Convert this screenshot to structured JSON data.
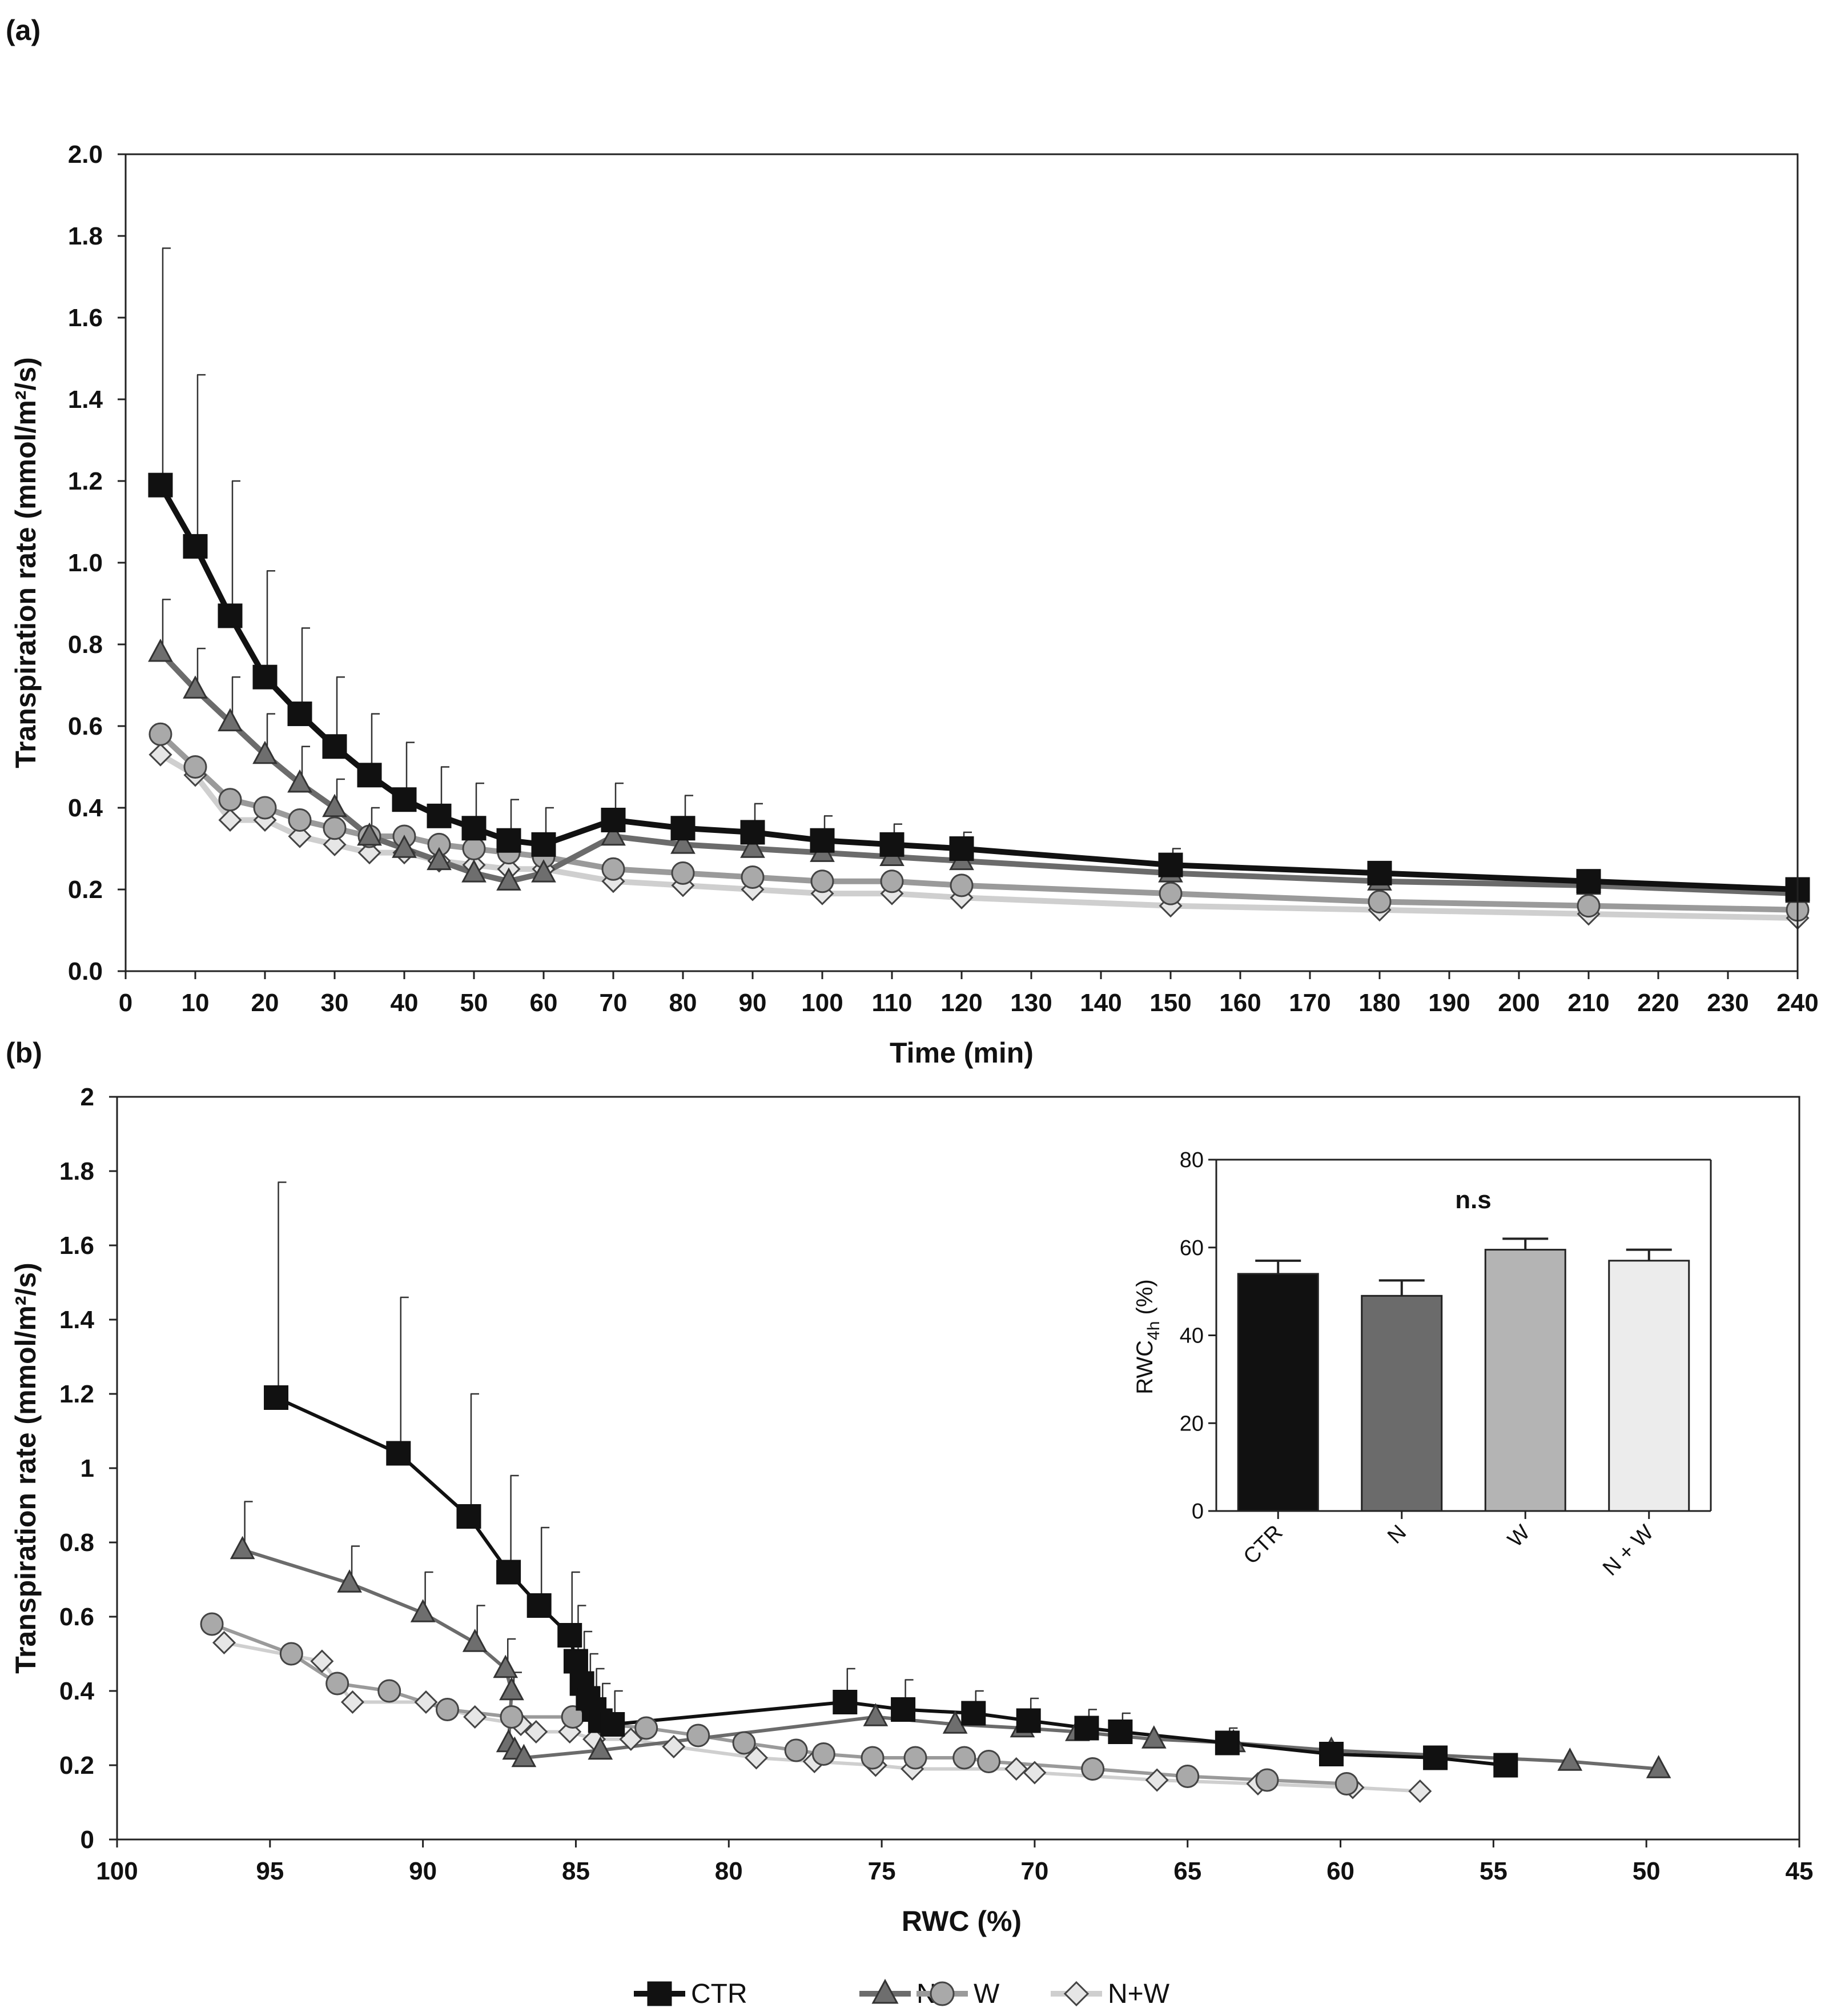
{
  "panels": {
    "a": "(a)",
    "b": "(b)"
  },
  "legend": [
    "CTR",
    "N",
    "W",
    "N+W"
  ],
  "colors": {
    "CTR": "#111111",
    "N": "#6b6b6b",
    "W": "#a9a9a9",
    "NW": "#dcdcdc"
  },
  "chart_data": [
    {
      "id": "a",
      "type": "line",
      "xlabel": "Time (min)",
      "ylabel": "Transpiration rate (mmol/m²/s)",
      "xlim": [
        0,
        240
      ],
      "ylim": [
        0,
        2
      ],
      "xticks": [
        0,
        10,
        20,
        30,
        40,
        50,
        60,
        70,
        80,
        90,
        100,
        110,
        120,
        130,
        140,
        150,
        160,
        170,
        180,
        190,
        200,
        210,
        220,
        230,
        240
      ],
      "yticks": [
        0,
        0.2,
        0.4,
        0.6,
        0.8,
        1.0,
        1.2,
        1.4,
        1.6,
        1.8,
        2.0
      ],
      "ytick_labels": [
        "0.0",
        "0.2",
        "0.4",
        "0.6",
        "0.8",
        "1.0",
        "1.2",
        "1.4",
        "1.6",
        "1.8",
        "2.0"
      ],
      "series": [
        {
          "name": "CTR",
          "marker": "square",
          "x": [
            5,
            10,
            15,
            20,
            25,
            30,
            35,
            40,
            45,
            50,
            55,
            60,
            70,
            80,
            90,
            100,
            110,
            120,
            150,
            180,
            210,
            240
          ],
          "y": [
            1.19,
            1.04,
            0.87,
            0.72,
            0.63,
            0.55,
            0.48,
            0.42,
            0.38,
            0.35,
            0.32,
            0.31,
            0.37,
            0.35,
            0.34,
            0.32,
            0.31,
            0.3,
            0.26,
            0.24,
            0.22,
            0.2
          ],
          "err": [
            0.58,
            0.42,
            0.33,
            0.26,
            0.21,
            0.17,
            0.15,
            0.14,
            0.12,
            0.11,
            0.1,
            0.09,
            0.09,
            0.08,
            0.07,
            0.06,
            0.05,
            0.04,
            0.04,
            0.02,
            0.02,
            0.02
          ]
        },
        {
          "name": "N",
          "marker": "triangle",
          "x": [
            5,
            10,
            15,
            20,
            25,
            30,
            35,
            40,
            45,
            50,
            55,
            60,
            70,
            80,
            90,
            100,
            110,
            120,
            150,
            180,
            210,
            240
          ],
          "y": [
            0.78,
            0.69,
            0.61,
            0.53,
            0.46,
            0.4,
            0.33,
            0.3,
            0.27,
            0.24,
            0.22,
            0.24,
            0.33,
            0.31,
            0.3,
            0.29,
            0.28,
            0.27,
            0.24,
            0.22,
            0.21,
            0.19
          ],
          "err": [
            0.13,
            0.1,
            0.11,
            0.1,
            0.09,
            0.07,
            0.07,
            0,
            0,
            0,
            0,
            0,
            0,
            0,
            0,
            0,
            0,
            0,
            0,
            0,
            0,
            0
          ]
        },
        {
          "name": "W",
          "marker": "circle",
          "x": [
            5,
            10,
            15,
            20,
            25,
            30,
            35,
            40,
            45,
            50,
            55,
            60,
            70,
            80,
            90,
            100,
            110,
            120,
            150,
            180,
            210,
            240
          ],
          "y": [
            0.58,
            0.5,
            0.42,
            0.4,
            0.37,
            0.35,
            0.33,
            0.33,
            0.31,
            0.3,
            0.29,
            0.28,
            0.25,
            0.24,
            0.23,
            0.22,
            0.22,
            0.21,
            0.19,
            0.17,
            0.16,
            0.15
          ],
          "err": []
        },
        {
          "name": "N+W",
          "marker": "diamond",
          "x": [
            5,
            10,
            15,
            20,
            25,
            30,
            35,
            40,
            45,
            50,
            55,
            60,
            70,
            80,
            90,
            100,
            110,
            120,
            150,
            180,
            210,
            240
          ],
          "y": [
            0.53,
            0.48,
            0.37,
            0.37,
            0.33,
            0.31,
            0.29,
            0.29,
            0.27,
            0.26,
            0.25,
            0.25,
            0.22,
            0.21,
            0.2,
            0.19,
            0.19,
            0.18,
            0.16,
            0.15,
            0.14,
            0.13
          ],
          "err": []
        }
      ]
    },
    {
      "id": "b",
      "type": "line",
      "xlabel": "RWC (%)",
      "ylabel": "Transpiration rate (mmol/m²/s)",
      "xlim": [
        100,
        45
      ],
      "ylim": [
        0,
        2
      ],
      "xticks": [
        100,
        95,
        90,
        85,
        80,
        75,
        70,
        65,
        60,
        55,
        50,
        45
      ],
      "yticks": [
        0,
        0.2,
        0.4,
        0.6,
        0.8,
        1,
        1.2,
        1.4,
        1.6,
        1.8,
        2
      ],
      "ytick_labels": [
        "0",
        "0.2",
        "0.4",
        "0.6",
        "0.8",
        "1",
        "1.2",
        "1.4",
        "1.6",
        "1.8",
        "2"
      ],
      "series": [
        {
          "name": "CTR",
          "marker": "square",
          "x": [
            94.8,
            90.8,
            88.5,
            87.2,
            86.2,
            85.2,
            85.0,
            84.8,
            84.6,
            84.4,
            84.2,
            83.8,
            76.2,
            74.3,
            72.0,
            70.2,
            68.3,
            67.2,
            63.7,
            60.3,
            56.9,
            54.6
          ],
          "y": [
            1.19,
            1.04,
            0.87,
            0.72,
            0.63,
            0.55,
            0.48,
            0.42,
            0.38,
            0.35,
            0.32,
            0.31,
            0.37,
            0.35,
            0.34,
            0.32,
            0.3,
            0.29,
            0.26,
            0.23,
            0.22,
            0.2
          ],
          "err": [
            0.58,
            0.42,
            0.33,
            0.26,
            0.21,
            0.17,
            0.15,
            0.14,
            0.12,
            0.11,
            0.1,
            0.09,
            0.09,
            0.08,
            0.06,
            0.06,
            0.05,
            0.05,
            0.04,
            0.02,
            0.02,
            0.02
          ]
        },
        {
          "name": "N",
          "marker": "triangle",
          "x": [
            95.9,
            92.4,
            90.0,
            88.3,
            87.3,
            87.1,
            87.2,
            87.0,
            86.7,
            84.2,
            75.2,
            72.6,
            70.4,
            68.6,
            66.1,
            63.5,
            60.3,
            52.5,
            49.6
          ],
          "y": [
            0.78,
            0.69,
            0.61,
            0.53,
            0.46,
            0.4,
            0.26,
            0.24,
            0.22,
            0.24,
            0.33,
            0.31,
            0.3,
            0.29,
            0.27,
            0.26,
            0.24,
            0.21,
            0.19
          ],
          "err": [
            0.13,
            0.1,
            0.11,
            0.1,
            0.08,
            0.05,
            0,
            0,
            0,
            0,
            0,
            0,
            0,
            0,
            0,
            0,
            0,
            0,
            0
          ]
        },
        {
          "name": "W",
          "marker": "circle",
          "x": [
            96.9,
            94.3,
            92.8,
            91.1,
            89.2,
            87.1,
            85.1,
            84.0,
            82.7,
            81.0,
            79.5,
            77.8,
            76.9,
            75.3,
            73.9,
            72.3,
            71.5,
            68.1,
            65.0,
            62.4,
            59.8
          ],
          "y": [
            0.58,
            0.5,
            0.42,
            0.4,
            0.35,
            0.33,
            0.33,
            0.31,
            0.3,
            0.28,
            0.26,
            0.24,
            0.23,
            0.22,
            0.22,
            0.22,
            0.21,
            0.19,
            0.17,
            0.16,
            0.15
          ],
          "err": []
        },
        {
          "name": "N+W",
          "marker": "diamond",
          "x": [
            96.5,
            93.3,
            92.3,
            89.9,
            88.3,
            86.8,
            86.3,
            85.2,
            84.4,
            83.2,
            81.8,
            79.1,
            77.2,
            75.2,
            74.0,
            70.6,
            70.0,
            66.0,
            62.7,
            59.6,
            57.4
          ],
          "y": [
            0.53,
            0.48,
            0.37,
            0.37,
            0.33,
            0.31,
            0.29,
            0.29,
            0.27,
            0.27,
            0.25,
            0.22,
            0.21,
            0.2,
            0.19,
            0.19,
            0.18,
            0.16,
            0.15,
            0.14,
            0.13
          ],
          "err": []
        }
      ]
    },
    {
      "id": "inset",
      "type": "bar",
      "title": "n.s",
      "ylabel_main": "RWC",
      "ylabel_sub": "4h",
      "ylabel_unit": " (%)",
      "categories": [
        "CTR",
        "N",
        "W",
        "N + W"
      ],
      "values": [
        54,
        49,
        59.5,
        57
      ],
      "err": [
        3,
        3.5,
        2.5,
        2.5
      ],
      "ylim": [
        0,
        80
      ],
      "yticks": [
        0,
        20,
        40,
        60,
        80
      ]
    }
  ]
}
